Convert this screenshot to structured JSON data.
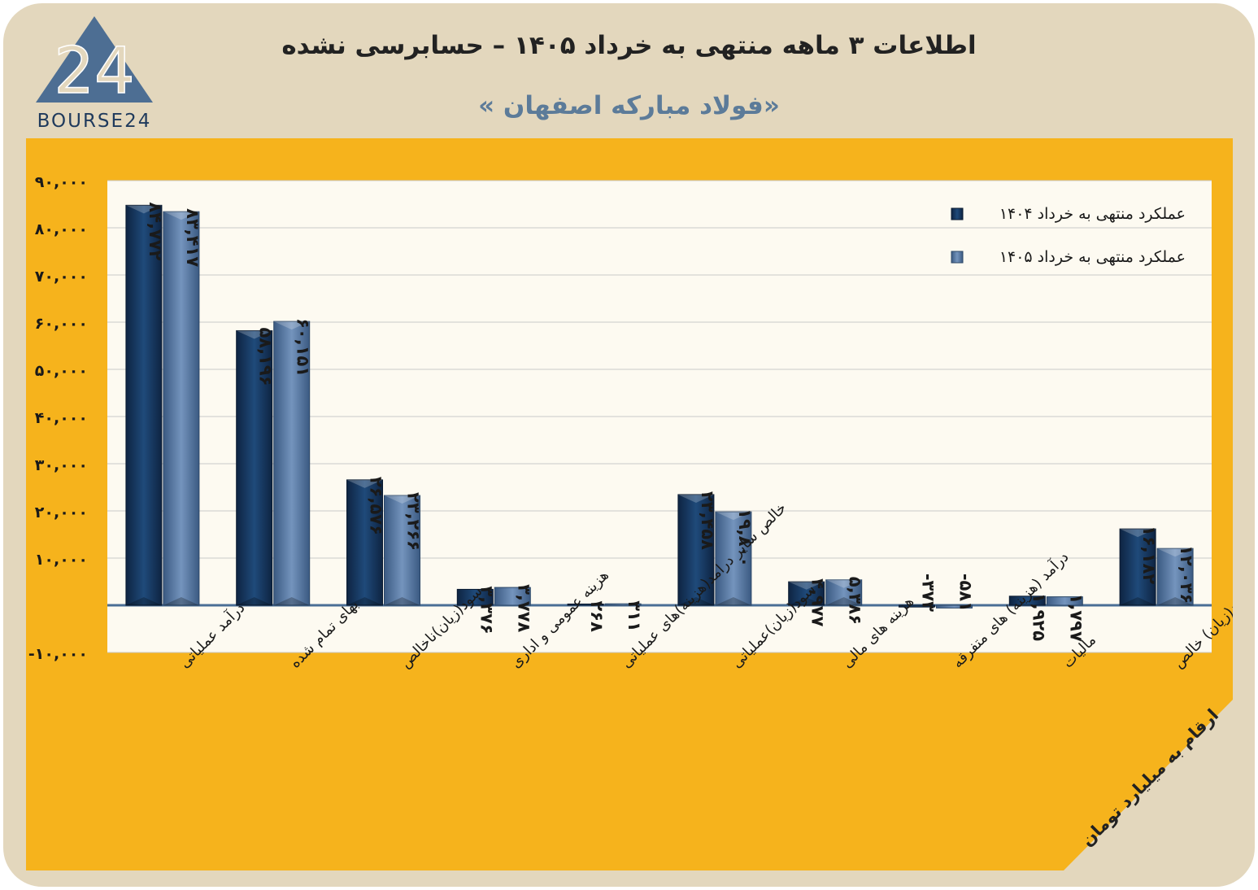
{
  "header": {
    "title": "اطلاعات ۳ ماهه منتهی به خرداد ۱۴۰۵ – حسابرسی نشده",
    "subtitle": "«فولاد مبارکه اصفهان »",
    "logo_text": "BOURSE24",
    "logo_mark": "24"
  },
  "footer": {
    "unit_note": "ارقام به میلیارد تومان"
  },
  "colors": {
    "background": "#e3d7bd",
    "chart_panel": "#f6b31c",
    "plot_area": "#fdfaf1",
    "series_1404": "#17375e",
    "series_1405": "#4f6f99",
    "logo": "#4d6e93"
  },
  "chart_data": {
    "type": "bar",
    "title": "اطلاعات ۳ ماهه منتهی به خرداد ۱۴۰۵ – حسابرسی نشده",
    "subtitle": "«فولاد مبارکه اصفهان »",
    "xlabel": "",
    "ylabel": "",
    "ylim": [
      -10000,
      90000
    ],
    "yticks": [
      -10000,
      10000,
      20000,
      30000,
      40000,
      50000,
      60000,
      70000,
      80000,
      90000
    ],
    "ytick_labels": [
      "-۱۰,۰۰۰",
      "۱۰,۰۰۰",
      "۲۰,۰۰۰",
      "۳۰,۰۰۰",
      "۴۰,۰۰۰",
      "۵۰,۰۰۰",
      "۶۰,۰۰۰",
      "۷۰,۰۰۰",
      "۸۰,۰۰۰",
      "۹۰,۰۰۰"
    ],
    "grid": true,
    "legend_position": "top-right",
    "categories": [
      "درآمد عملیاتی",
      "بهای تمام شده",
      "سود(زیان)ناخالص",
      "هزینه عمومی و اداری",
      "خالص سایر درامد(هزینه)های عملیاتی",
      "سود(زیان)عملیاتی",
      "هزینه های مالی",
      "درآمد (هزینه) های متفرقه",
      "مالیات",
      "سود(زیان) خالص"
    ],
    "series": [
      {
        "name": "عملکرد منتهی به خرداد ۱۴۰۴",
        "values": [
          84772,
          58196,
          26576,
          3376,
          268,
          23458,
          4977,
          -373,
          1925,
          16182
        ],
        "labels": [
          "۸۴,۷۷۲",
          "۵۸,۱۹۶",
          "۲۶,۵۷۶",
          "۳,۳۷۶",
          "۲۶۸",
          "۲۳,۴۵۸",
          "۴,۹۷۷",
          "-۳۷۳",
          "۱,۹۲۵",
          "۱۶,۱۸۲"
        ]
      },
      {
        "name": "عملکرد منتهی به خرداد ۱۴۰۵",
        "values": [
          83417,
          60151,
          23266,
          3778,
          311,
          19800,
          5386,
          -581,
          1797,
          12036
        ],
        "labels": [
          "۸۳,۴۱۷",
          "۶۰,۱۵۱",
          "۲۳,۲۶۶",
          "۳,۷۷۸",
          "۳۱۱",
          "۱۹,۸۰۰",
          "۵,۳۸۶",
          "-۵۸۱",
          "۱,۷۹۷",
          "۱۲,۰۳۶"
        ]
      }
    ]
  }
}
